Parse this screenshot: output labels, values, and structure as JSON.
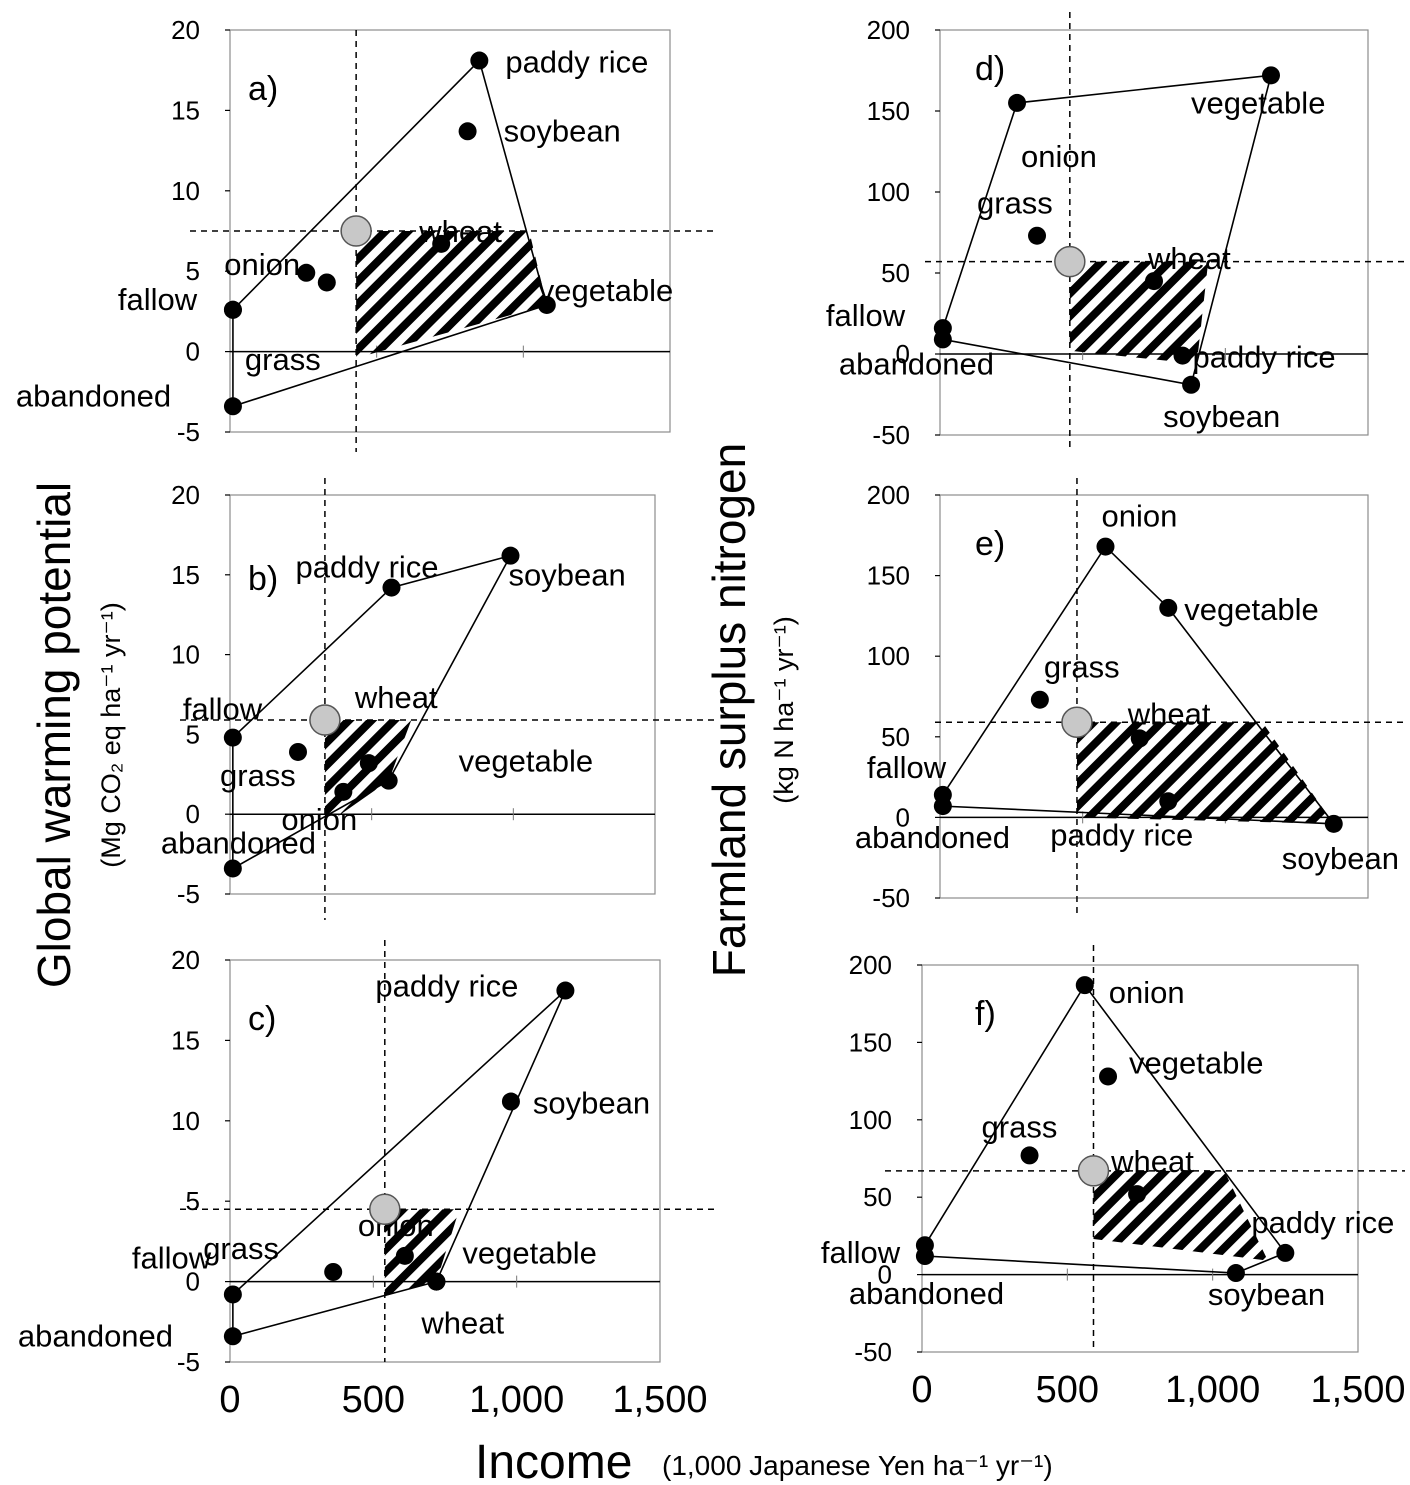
{
  "chart_data": [
    {
      "type": "scatter",
      "panel": "a)",
      "xlim": [
        0,
        1500
      ],
      "ylim": [
        -5,
        20
      ],
      "yticks": [
        "20",
        "15",
        "10",
        "5",
        "0",
        "-5"
      ],
      "points": [
        {
          "label": "paddy rice",
          "x": 850,
          "y": 18.1
        },
        {
          "label": "soybean",
          "x": 810,
          "y": 13.7
        },
        {
          "label": "wheat",
          "x": 720,
          "y": 6.7
        },
        {
          "label": "onion",
          "x": 260,
          "y": 4.9
        },
        {
          "label": "",
          "x": 330,
          "y": 4.3
        },
        {
          "label": "vegetable",
          "x": 1080,
          "y": 2.9
        },
        {
          "label": "fallow",
          "x": 10,
          "y": 2.6
        },
        {
          "label": "grass",
          "x": 10,
          "y": 2.6
        },
        {
          "label": "abandoned",
          "x": 10,
          "y": -3.4
        }
      ],
      "hull": [
        [
          10,
          2.6
        ],
        [
          850,
          18.1
        ],
        [
          1080,
          2.9
        ],
        [
          10,
          -3.4
        ]
      ],
      "reference_point": {
        "x": 430,
        "y": 7.5
      },
      "dominated_region": [
        [
          430,
          7.5
        ],
        [
          1020,
          7.5
        ],
        [
          1080,
          2.9
        ],
        [
          430,
          -0.4
        ]
      ]
    },
    {
      "type": "scatter",
      "panel": "b)",
      "xlim": [
        0,
        1500
      ],
      "ylim": [
        -5,
        20
      ],
      "yticks": [
        "20",
        "15",
        "10",
        "5",
        "0",
        "-5"
      ],
      "points": [
        {
          "label": "paddy rice",
          "x": 570,
          "y": 14.2
        },
        {
          "label": "soybean",
          "x": 990,
          "y": 16.2
        },
        {
          "label": "fallow",
          "x": 10,
          "y": 4.8
        },
        {
          "label": "wheat",
          "x": 490,
          "y": 3.2
        },
        {
          "label": "grass",
          "x": 240,
          "y": 3.9
        },
        {
          "label": "vegetable",
          "x": 560,
          "y": 2.1
        },
        {
          "label": "onion",
          "x": 400,
          "y": 1.4
        },
        {
          "label": "abandoned",
          "x": 10,
          "y": -3.4
        }
      ],
      "hull": [
        [
          10,
          4.8
        ],
        [
          570,
          14.2
        ],
        [
          990,
          16.2
        ],
        [
          560,
          2.1
        ],
        [
          10,
          -3.4
        ]
      ],
      "reference_point": {
        "x": 335,
        "y": 5.9
      },
      "dominated_region": [
        [
          335,
          5.9
        ],
        [
          640,
          5.9
        ],
        [
          560,
          2.1
        ],
        [
          335,
          -0.7
        ]
      ]
    },
    {
      "type": "scatter",
      "panel": "c)",
      "xlim": [
        0,
        1500
      ],
      "ylim": [
        -5,
        20
      ],
      "yticks": [
        "20",
        "15",
        "10",
        "5",
        "0",
        "-5"
      ],
      "points": [
        {
          "label": "paddy rice",
          "x": 1170,
          "y": 18.1
        },
        {
          "label": "soybean",
          "x": 980,
          "y": 11.2
        },
        {
          "label": "onion",
          "x": 610,
          "y": 1.6
        },
        {
          "label": "grass",
          "x": 360,
          "y": 0.6
        },
        {
          "label": "fallow",
          "x": 10,
          "y": -0.8
        },
        {
          "label": "wheat",
          "x": 720,
          "y": 0.0
        },
        {
          "label": "abandoned",
          "x": 10,
          "y": -3.4
        },
        {
          "label": "vegetable",
          "x": 720,
          "y": 0.0
        }
      ],
      "hull": [
        [
          10,
          -0.8
        ],
        [
          1170,
          18.1
        ],
        [
          720,
          0.0
        ],
        [
          10,
          -3.4
        ]
      ],
      "reference_point": {
        "x": 540,
        "y": 4.5
      },
      "dominated_region": [
        [
          540,
          4.5
        ],
        [
          800,
          4.5
        ],
        [
          720,
          0.0
        ],
        [
          540,
          -0.9
        ]
      ]
    },
    {
      "type": "scatter",
      "panel": "d)",
      "xlim": [
        0,
        1500
      ],
      "ylim": [
        -50,
        200
      ],
      "yticks": [
        "200",
        "150",
        "100",
        "50",
        "0",
        "-50"
      ],
      "points": [
        {
          "label": "vegetable",
          "x": 1160,
          "y": 172
        },
        {
          "label": "onion",
          "x": 270,
          "y": 155
        },
        {
          "label": "grass",
          "x": 340,
          "y": 73
        },
        {
          "label": "wheat",
          "x": 750,
          "y": 45
        },
        {
          "label": "fallow",
          "x": 10,
          "y": 16
        },
        {
          "label": "abandoned",
          "x": 10,
          "y": 9
        },
        {
          "label": "paddy rice",
          "x": 850,
          "y": -1
        },
        {
          "label": "soybean",
          "x": 880,
          "y": -19
        }
      ],
      "hull": [
        [
          10,
          16
        ],
        [
          270,
          155
        ],
        [
          1160,
          172
        ],
        [
          880,
          -19
        ],
        [
          10,
          9
        ]
      ],
      "reference_point": {
        "x": 455,
        "y": 57
      },
      "dominated_region": [
        [
          455,
          57
        ],
        [
          940,
          57
        ],
        [
          900,
          -6
        ],
        [
          455,
          2
        ]
      ]
    },
    {
      "type": "scatter",
      "panel": "e)",
      "xlim": [
        0,
        1500
      ],
      "ylim": [
        -50,
        200
      ],
      "yticks": [
        "200",
        "150",
        "100",
        "50",
        "0",
        "-50"
      ],
      "points": [
        {
          "label": "onion",
          "x": 580,
          "y": 168
        },
        {
          "label": "vegetable",
          "x": 800,
          "y": 130
        },
        {
          "label": "grass",
          "x": 350,
          "y": 73
        },
        {
          "label": "wheat",
          "x": 700,
          "y": 49
        },
        {
          "label": "fallow",
          "x": 10,
          "y": 14
        },
        {
          "label": "abandoned",
          "x": 10,
          "y": 7
        },
        {
          "label": "paddy rice",
          "x": 800,
          "y": 10
        },
        {
          "label": "soybean",
          "x": 1380,
          "y": -4
        }
      ],
      "hull": [
        [
          10,
          14
        ],
        [
          580,
          168
        ],
        [
          800,
          130
        ],
        [
          1380,
          -4
        ],
        [
          10,
          7
        ]
      ],
      "reference_point": {
        "x": 480,
        "y": 59
      },
      "dominated_region": [
        [
          480,
          59
        ],
        [
          1130,
          59
        ],
        [
          1380,
          -4
        ],
        [
          480,
          0
        ]
      ]
    },
    {
      "type": "scatter",
      "panel": "f)",
      "xlim": [
        0,
        1500
      ],
      "ylim": [
        -50,
        200
      ],
      "yticks": [
        "200",
        "150",
        "100",
        "50",
        "0",
        "-50"
      ],
      "xticks": [
        "0",
        "500",
        "1,000",
        "1,500"
      ],
      "points": [
        {
          "label": "onion",
          "x": 560,
          "y": 187
        },
        {
          "label": "vegetable",
          "x": 640,
          "y": 128
        },
        {
          "label": "grass",
          "x": 370,
          "y": 77
        },
        {
          "label": "wheat",
          "x": 740,
          "y": 52
        },
        {
          "label": "fallow",
          "x": 10,
          "y": 19
        },
        {
          "label": "abandoned",
          "x": 10,
          "y": 12
        },
        {
          "label": "paddy rice",
          "x": 1250,
          "y": 14
        },
        {
          "label": "soybean",
          "x": 1080,
          "y": 1
        }
      ],
      "hull": [
        [
          10,
          19
        ],
        [
          560,
          187
        ],
        [
          1250,
          14
        ],
        [
          1080,
          1
        ],
        [
          10,
          12
        ]
      ],
      "reference_point": {
        "x": 590,
        "y": 67
      },
      "dominated_region": [
        [
          590,
          67
        ],
        [
          1040,
          67
        ],
        [
          1190,
          9
        ],
        [
          590,
          23
        ]
      ]
    }
  ],
  "labels": {
    "left_ylabel_main": "Global warming potential",
    "left_ylabel_unit": "(Mg CO₂ eq ha⁻¹ yr⁻¹)",
    "right_ylabel_main": "Farmland surplus nitrogen",
    "right_ylabel_unit": "(kg N ha⁻¹ yr⁻¹)",
    "xlabel_main": "Income",
    "xlabel_unit": "(1,000 Japanese Yen ha⁻¹ yr⁻¹)"
  },
  "colors": {
    "point": "#000000",
    "reference_point": "#c8c8c8",
    "hatch": "#000000"
  }
}
